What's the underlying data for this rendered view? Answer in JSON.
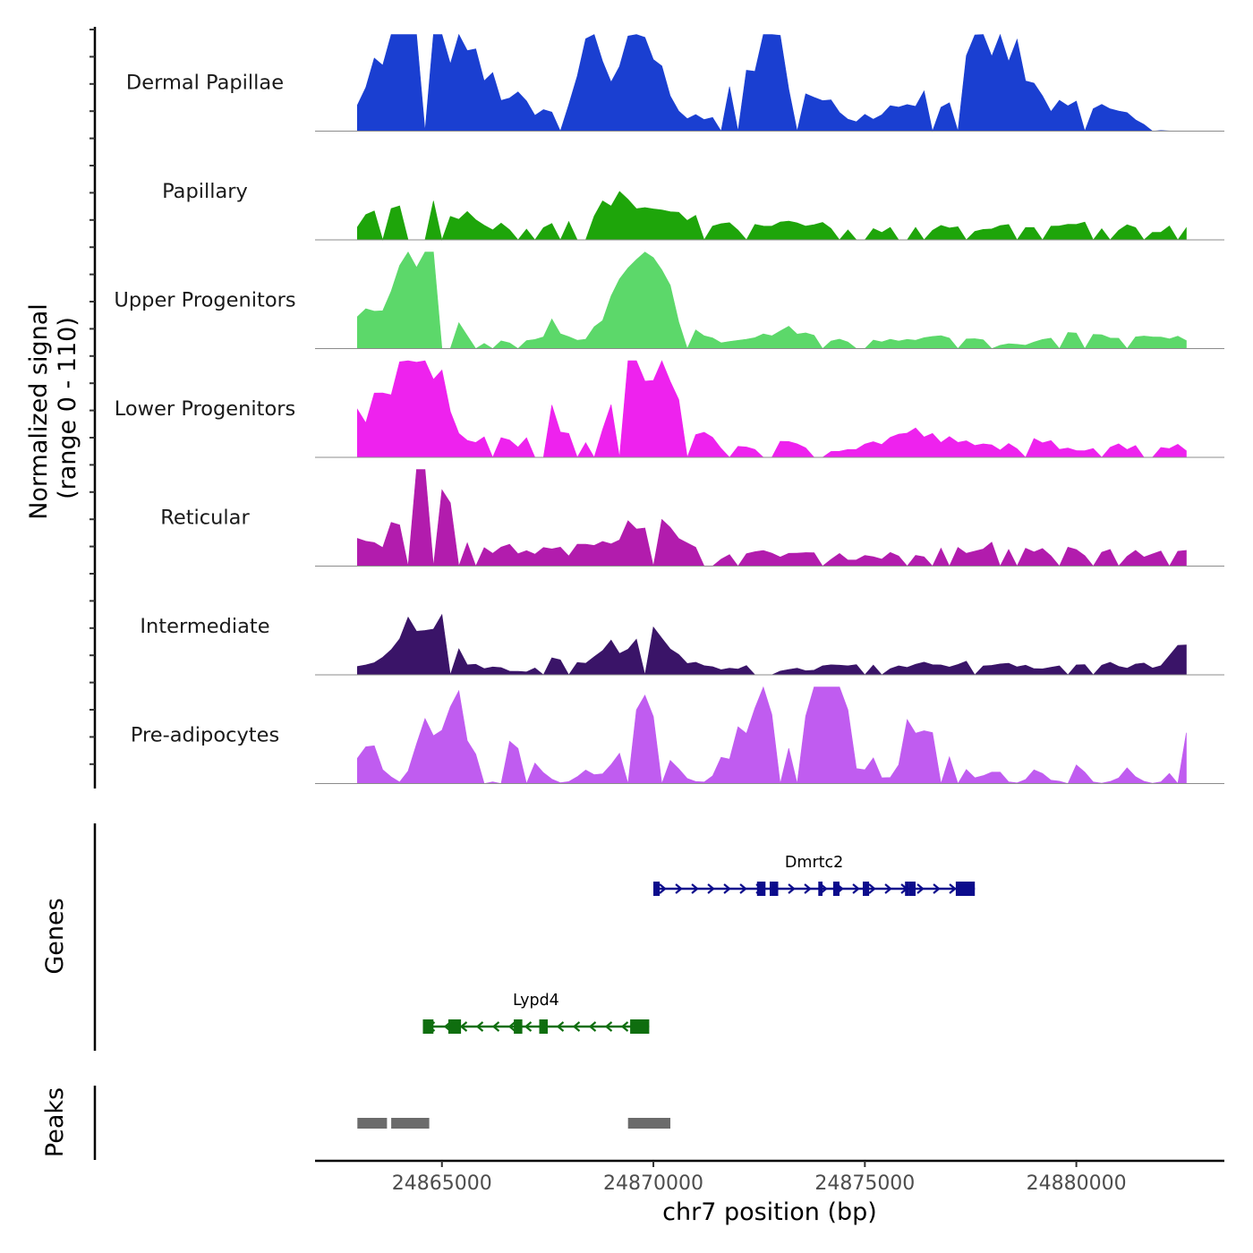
{
  "chart_data": {
    "type": "area",
    "title": "",
    "chromosome": "chr7",
    "xlabel": "chr7 position (bp)",
    "xlim": [
      24862000,
      24883500
    ],
    "x_ticks": [
      24865000,
      24870000,
      24875000,
      24880000
    ],
    "x_tick_labels": [
      "24865000",
      "24870000",
      "24875000",
      "24880000"
    ],
    "signal_ylabel": [
      "Normalized signal",
      "(range 0 - 110)"
    ],
    "signal_range": [
      0,
      110
    ],
    "signal_start": 24863000,
    "signal_end": 24882600,
    "signal_bin_bp": 200,
    "tracks": [
      {
        "name": "Dermal Papillae",
        "color": "#1a3fd1",
        "peaks": [
          [
            24864150,
            70,
            5
          ],
          [
            24864400,
            90,
            1
          ],
          [
            24864850,
            55,
            5
          ],
          [
            24866500,
            25,
            6
          ],
          [
            24868500,
            24,
            2
          ],
          [
            24868550,
            75,
            1
          ],
          [
            24869300,
            35,
            4
          ],
          [
            24869750,
            70,
            2
          ],
          [
            24872100,
            30,
            4
          ],
          [
            24872500,
            38,
            2
          ],
          [
            24872800,
            40,
            2
          ],
          [
            24873200,
            28,
            2
          ],
          [
            24874100,
            25,
            2
          ],
          [
            24875500,
            22,
            3
          ],
          [
            24876300,
            30,
            2
          ],
          [
            24877200,
            22,
            2
          ],
          [
            24878000,
            38,
            3
          ],
          [
            24878250,
            70,
            3
          ],
          [
            24880000,
            25,
            3
          ],
          [
            24881000,
            18,
            2
          ]
        ]
      },
      {
        "name": "Papillary",
        "color": "#1ea50a",
        "peaks": [
          [
            24863100,
            12,
            3
          ],
          [
            24864200,
            18,
            5
          ],
          [
            24864700,
            22,
            3
          ],
          [
            24866000,
            10,
            5
          ],
          [
            24867500,
            8,
            5
          ],
          [
            24868500,
            10,
            4
          ],
          [
            24869200,
            14,
            3
          ],
          [
            24869900,
            25,
            5
          ],
          [
            24871500,
            9,
            4
          ],
          [
            24873300,
            15,
            4
          ],
          [
            24874800,
            9,
            4
          ],
          [
            24876500,
            10,
            4
          ],
          [
            24878200,
            14,
            4
          ],
          [
            24879900,
            10,
            3
          ],
          [
            24880900,
            14,
            3
          ],
          [
            24882500,
            20,
            2
          ]
        ]
      },
      {
        "name": "Upper Progenitors",
        "color": "#5cd86a",
        "peaks": [
          [
            24863100,
            38,
            2
          ],
          [
            24864200,
            55,
            2
          ],
          [
            24864550,
            70,
            2
          ],
          [
            24864900,
            38,
            2
          ],
          [
            24865600,
            8,
            5
          ],
          [
            24867600,
            22,
            1
          ],
          [
            24868500,
            8,
            6
          ],
          [
            24869300,
            28,
            2
          ],
          [
            24869950,
            75,
            3
          ],
          [
            24872300,
            8,
            5
          ],
          [
            24873300,
            14,
            3
          ],
          [
            24875400,
            8,
            5
          ],
          [
            24877000,
            10,
            5
          ],
          [
            24879900,
            15,
            3
          ],
          [
            24881500,
            10,
            4
          ],
          [
            24882500,
            10,
            2
          ]
        ]
      },
      {
        "name": "Lower Progenitors",
        "color": "#ee22ee",
        "peaks": [
          [
            24863100,
            32,
            3
          ],
          [
            24863600,
            20,
            3
          ],
          [
            24864000,
            62,
            2
          ],
          [
            24864450,
            42,
            2
          ],
          [
            24864900,
            44,
            2
          ],
          [
            24865600,
            14,
            4
          ],
          [
            24866800,
            10,
            5
          ],
          [
            24867600,
            28,
            1
          ],
          [
            24868500,
            14,
            5
          ],
          [
            24869500,
            20,
            3
          ],
          [
            24870000,
            95,
            3
          ],
          [
            24871500,
            10,
            5
          ],
          [
            24873300,
            12,
            4
          ],
          [
            24875500,
            12,
            4
          ],
          [
            24876200,
            16,
            3
          ],
          [
            24877500,
            12,
            4
          ],
          [
            24879100,
            14,
            3
          ],
          [
            24880900,
            12,
            4
          ],
          [
            24882300,
            10,
            3
          ]
        ]
      },
      {
        "name": "Reticular",
        "color": "#b21cad",
        "peaks": [
          [
            24863100,
            28,
            2
          ],
          [
            24864200,
            45,
            2
          ],
          [
            24864550,
            55,
            2
          ],
          [
            24864950,
            60,
            2
          ],
          [
            24865500,
            12,
            5
          ],
          [
            24866700,
            10,
            5
          ],
          [
            24868300,
            12,
            5
          ],
          [
            24869400,
            24,
            3
          ],
          [
            24869950,
            32,
            3
          ],
          [
            24871500,
            10,
            5
          ],
          [
            24873300,
            12,
            4
          ],
          [
            24875400,
            10,
            5
          ],
          [
            24877000,
            12,
            4
          ],
          [
            24878300,
            18,
            3
          ],
          [
            24879900,
            15,
            4
          ],
          [
            24881500,
            12,
            4
          ],
          [
            24882500,
            12,
            2
          ]
        ]
      },
      {
        "name": "Intermediate",
        "color": "#3a1468",
        "peaks": [
          [
            24863200,
            8,
            2
          ],
          [
            24864100,
            22,
            2
          ],
          [
            24864500,
            30,
            2
          ],
          [
            24864900,
            38,
            2
          ],
          [
            24865900,
            10,
            3
          ],
          [
            24867600,
            18,
            1
          ],
          [
            24868100,
            7,
            4
          ],
          [
            24869300,
            22,
            3
          ],
          [
            24869950,
            30,
            3
          ],
          [
            24871900,
            8,
            4
          ],
          [
            24872500,
            14,
            1
          ],
          [
            24874200,
            8,
            4
          ],
          [
            24875900,
            7,
            4
          ],
          [
            24877100,
            10,
            3
          ],
          [
            24878400,
            12,
            3
          ],
          [
            24880000,
            10,
            3
          ],
          [
            24881500,
            10,
            4
          ],
          [
            24882500,
            35,
            1
          ]
        ]
      },
      {
        "name": "Pre-adipocytes",
        "color": "#c05cf0",
        "peaks": [
          [
            24863200,
            40,
            1
          ],
          [
            24863500,
            20,
            1
          ],
          [
            24864550,
            55,
            1
          ],
          [
            24864900,
            28,
            1
          ],
          [
            24865300,
            55,
            1
          ],
          [
            24865550,
            55,
            1
          ],
          [
            24866700,
            35,
            1
          ],
          [
            24866900,
            25,
            1
          ],
          [
            24867300,
            15,
            1
          ],
          [
            24868400,
            12,
            1
          ],
          [
            24869300,
            30,
            2
          ],
          [
            24869800,
            40,
            1
          ],
          [
            24870050,
            38,
            2
          ],
          [
            24871700,
            25,
            1
          ],
          [
            24872100,
            40,
            1
          ],
          [
            24872400,
            40,
            1
          ],
          [
            24872600,
            105,
            1
          ],
          [
            24872950,
            60,
            1
          ],
          [
            24873700,
            70,
            2
          ],
          [
            24874050,
            205,
            1
          ],
          [
            24874400,
            90,
            1
          ],
          [
            24875100,
            25,
            1
          ],
          [
            24876000,
            40,
            1
          ],
          [
            24876300,
            70,
            1
          ],
          [
            24876700,
            25,
            1
          ],
          [
            24877200,
            30,
            1
          ],
          [
            24878000,
            20,
            1
          ],
          [
            24879100,
            15,
            1
          ],
          [
            24880000,
            20,
            1
          ],
          [
            24881200,
            15,
            1
          ],
          [
            24882500,
            50,
            1
          ]
        ]
      }
    ],
    "genes_label": "Genes",
    "genes": [
      {
        "name": "Dmrtc2",
        "strand": "+",
        "start": 24870000,
        "end": 24877600,
        "color": "#0c0c8c",
        "exons": [
          [
            24870000,
            24870150
          ],
          [
            24872450,
            24872650
          ],
          [
            24872750,
            24872950
          ],
          [
            24873900,
            24874000
          ],
          [
            24874250,
            24874400
          ],
          [
            24874950,
            24875100
          ],
          [
            24875950,
            24876050
          ],
          [
            24876050,
            24876200
          ],
          [
            24877150,
            24877600
          ]
        ]
      },
      {
        "name": "Lypd4",
        "strand": "-",
        "start": 24864550,
        "end": 24869900,
        "color": "#0f6e0f",
        "exons": [
          [
            24864550,
            24864800
          ],
          [
            24865150,
            24865450
          ],
          [
            24866700,
            24866900
          ],
          [
            24867300,
            24867500
          ],
          [
            24869450,
            24869900
          ]
        ]
      }
    ],
    "peaks_label": "Peaks",
    "peak_regions": [
      [
        24863000,
        24863700
      ],
      [
        24863800,
        24864700
      ],
      [
        24869400,
        24870400
      ]
    ],
    "peak_color": "#6b6b6b"
  }
}
